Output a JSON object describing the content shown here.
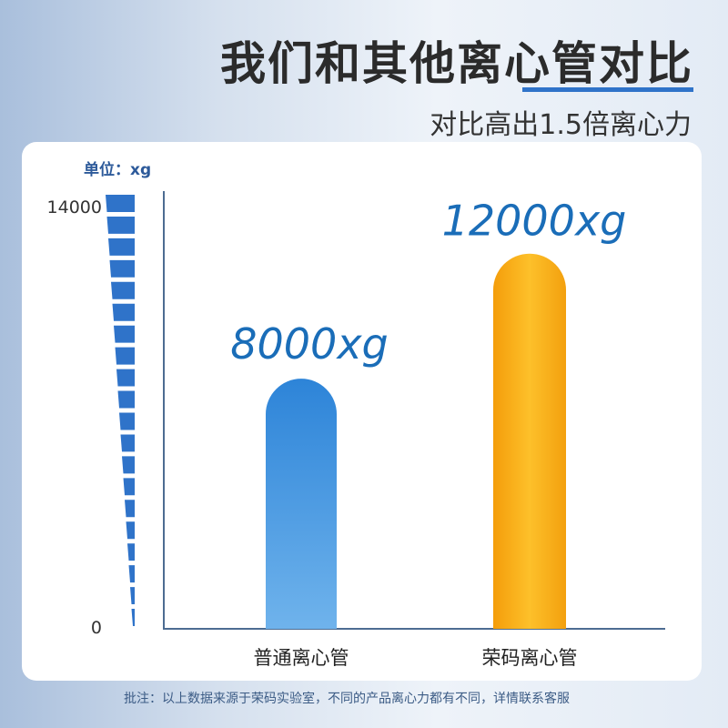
{
  "header": {
    "title": "我们和其他离心管对比",
    "subtitle": "对比高出1.5倍离心力"
  },
  "footer": {
    "note": "批注：以上数据来源于荣码实验室，不同的产品离心力都有不同，详情联系客服"
  },
  "colors": {
    "accent": "#2f73c9",
    "bar_regular": "#3d8fdc",
    "bar_rongma": "#f7a915",
    "label": "#1a6db8"
  },
  "chart_data": {
    "type": "bar",
    "unit_label": "单位：xg",
    "categories": [
      "普通离心管",
      "荣码离心管"
    ],
    "values": [
      8000,
      12000
    ],
    "data_labels": [
      "8000xg",
      "12000xg"
    ],
    "ylim": [
      0,
      14000
    ],
    "yticks": [
      "0",
      "14000"
    ],
    "grid": false
  }
}
